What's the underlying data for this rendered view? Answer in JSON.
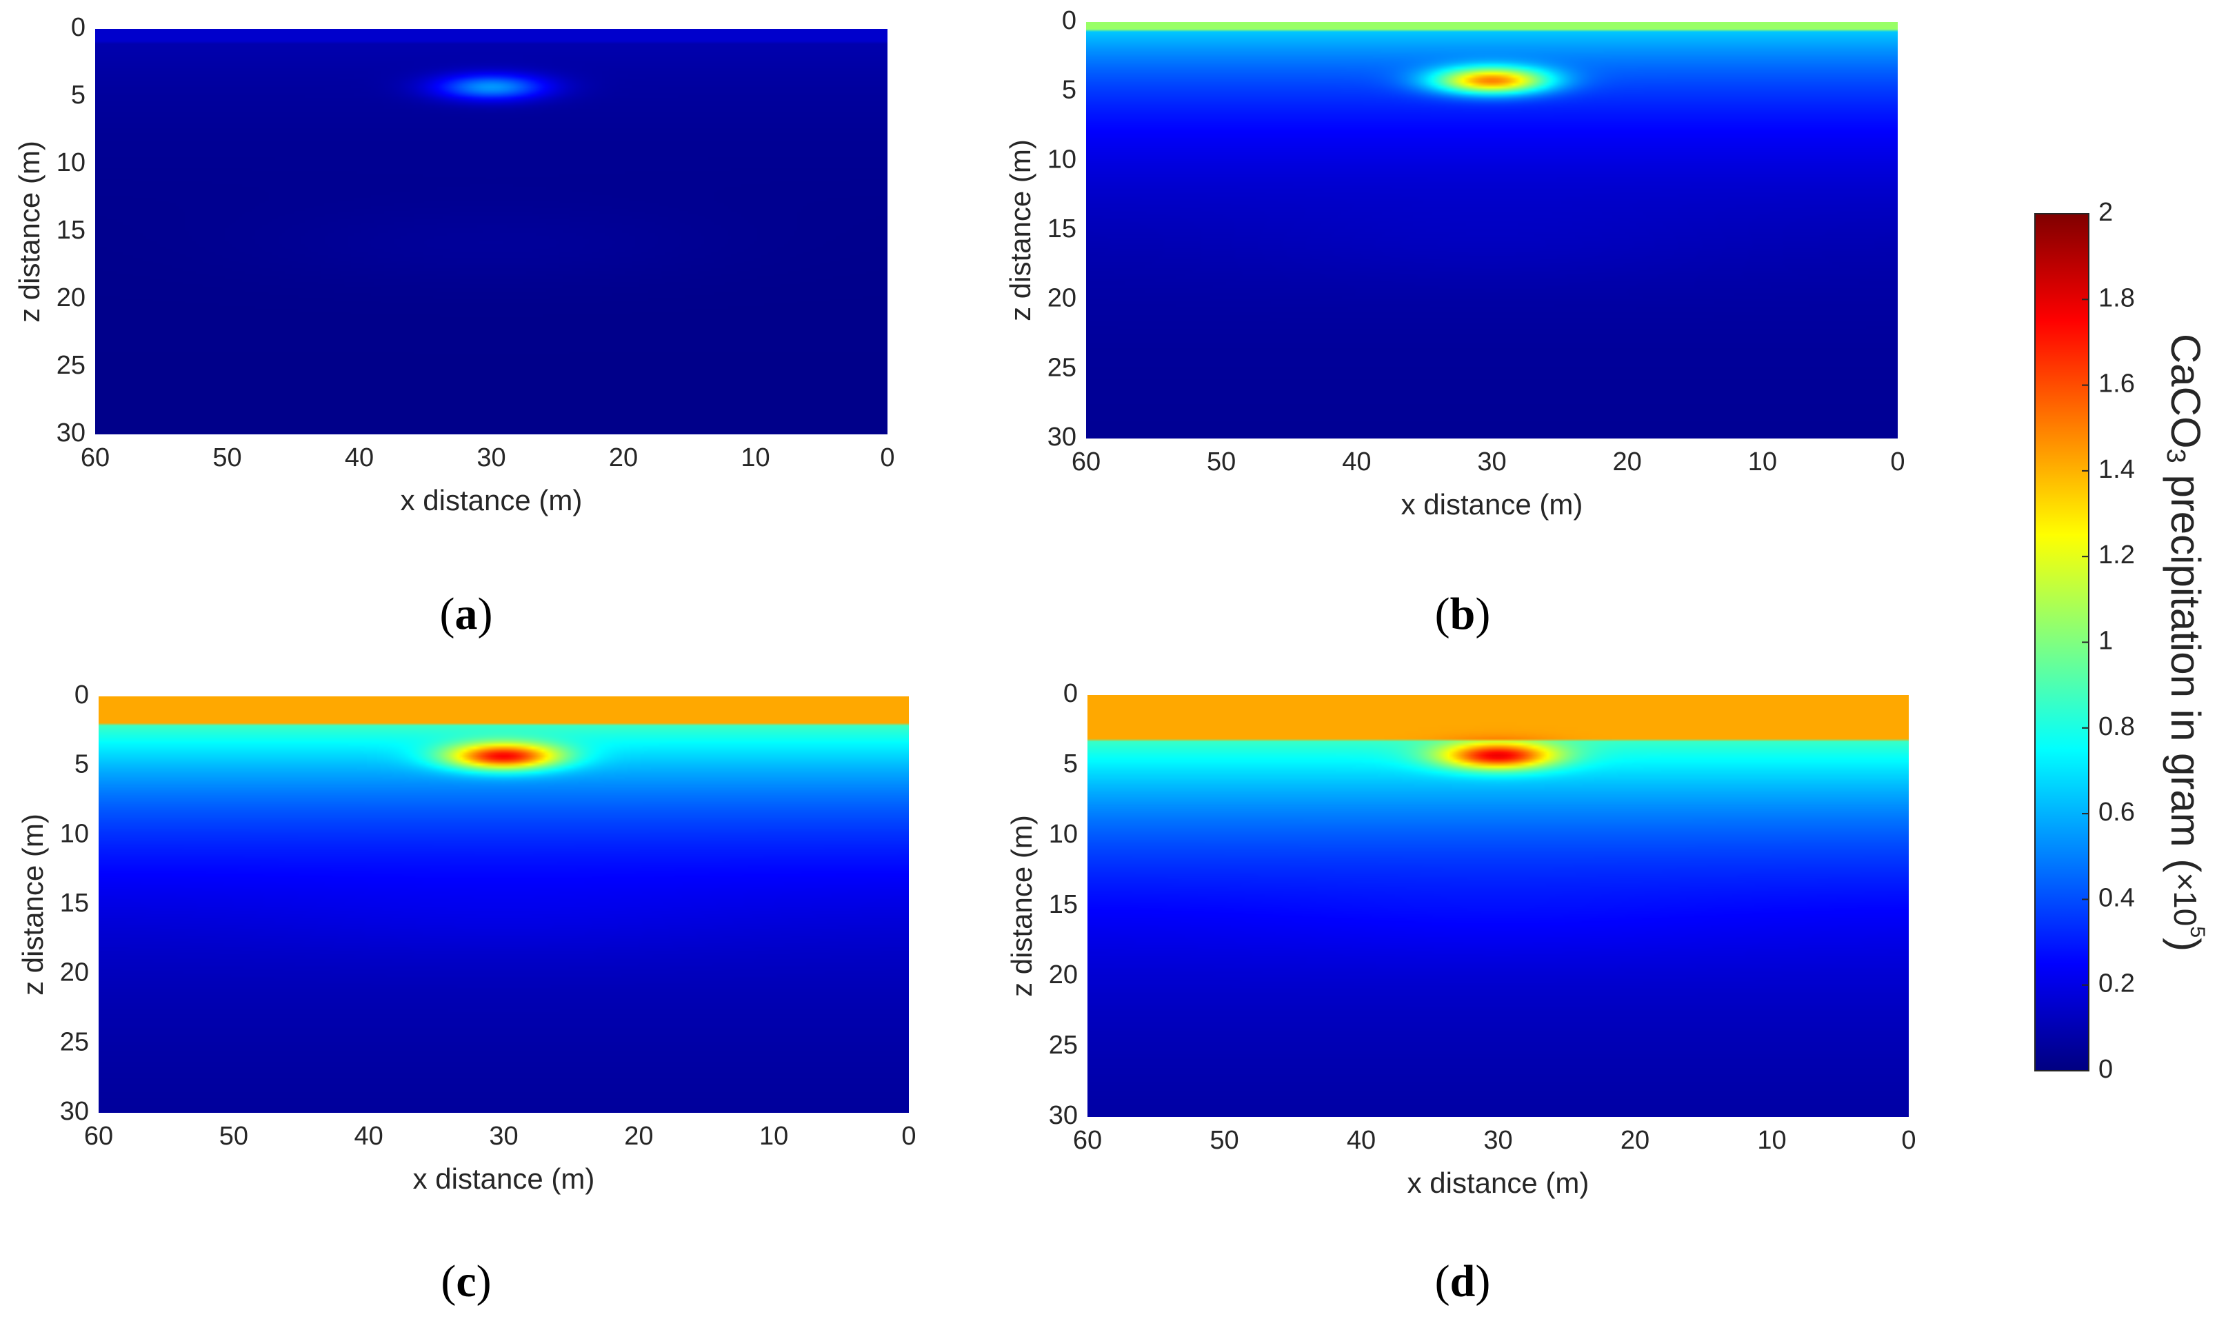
{
  "chart_data": [
    {
      "type": "heatmap",
      "panel_label": "a",
      "xlabel": "x distance (m)",
      "ylabel": "z distance (m)",
      "xlim": [
        60,
        0
      ],
      "ylim": [
        0,
        30
      ],
      "x_reversed": true,
      "y_reversed": true,
      "xticks": [
        60,
        50,
        40,
        30,
        20,
        10,
        0
      ],
      "yticks": [
        0,
        5,
        10,
        15,
        20,
        25,
        30
      ],
      "field": {
        "top_layer_value": 0.15,
        "top_layer_depth": 1.0,
        "decay_depth": 6,
        "background_value": 0.02,
        "hotspot": {
          "x": 30,
          "z": 4.3,
          "peak_value": 0.55
        }
      }
    },
    {
      "type": "heatmap",
      "panel_label": "b",
      "xlabel": "x distance (m)",
      "ylabel": "z distance (m)",
      "xlim": [
        60,
        0
      ],
      "ylim": [
        0,
        30
      ],
      "x_reversed": true,
      "y_reversed": true,
      "xticks": [
        60,
        50,
        40,
        30,
        20,
        10,
        0
      ],
      "yticks": [
        0,
        5,
        10,
        15,
        20,
        25,
        30
      ],
      "field": {
        "top_layer_value": 1.05,
        "top_layer_depth": 0.6,
        "decay_depth": 7,
        "background_value": 0.03,
        "hotspot": {
          "x": 30,
          "z": 4.2,
          "peak_value": 1.5
        }
      }
    },
    {
      "type": "heatmap",
      "panel_label": "c",
      "xlabel": "x distance (m)",
      "ylabel": "z distance (m)",
      "xlim": [
        60,
        0
      ],
      "ylim": [
        0,
        30
      ],
      "x_reversed": true,
      "y_reversed": true,
      "xticks": [
        60,
        50,
        40,
        30,
        20,
        10,
        0
      ],
      "yticks": [
        0,
        5,
        10,
        15,
        20,
        25,
        30
      ],
      "field": {
        "top_layer_value": 1.42,
        "top_layer_depth": 2.0,
        "decay_depth": 8,
        "background_value": 0.03,
        "hotspot": {
          "x": 30,
          "z": 4.3,
          "peak_value": 1.75
        }
      }
    },
    {
      "type": "heatmap",
      "panel_label": "d",
      "xlabel": "x distance (m)",
      "ylabel": "z distance (m)",
      "xlim": [
        60,
        0
      ],
      "ylim": [
        0,
        30
      ],
      "x_reversed": true,
      "y_reversed": true,
      "xticks": [
        60,
        50,
        40,
        30,
        20,
        10,
        0
      ],
      "yticks": [
        0,
        5,
        10,
        15,
        20,
        25,
        30
      ],
      "field": {
        "top_layer_value": 1.42,
        "top_layer_depth": 3.1,
        "decay_depth": 9,
        "background_value": 0.03,
        "hotspot": {
          "x": 30,
          "z": 4.3,
          "peak_value": 1.78
        }
      }
    }
  ],
  "colorbar": {
    "colormap": "jet",
    "min": 0,
    "max": 2,
    "ticks": [
      "0",
      "0.2",
      "0.4",
      "0.6",
      "0.8",
      "1",
      "1.2",
      "1.4",
      "1.6",
      "1.8",
      "2"
    ],
    "title": "CaCO3 precipitation in gram (×10⁵)",
    "title_main": "CaCO",
    "title_sub": "3",
    "title_rest": " precipitation in gram (",
    "title_times": "×10",
    "title_sup": "5",
    "title_close": ")"
  },
  "panel_labels": [
    {
      "open": "(",
      "letter": "a",
      "close": ")"
    },
    {
      "open": "(",
      "letter": "b",
      "close": ")"
    },
    {
      "open": "(",
      "letter": "c",
      "close": ")"
    },
    {
      "open": "(",
      "letter": "d",
      "close": ")"
    }
  ]
}
